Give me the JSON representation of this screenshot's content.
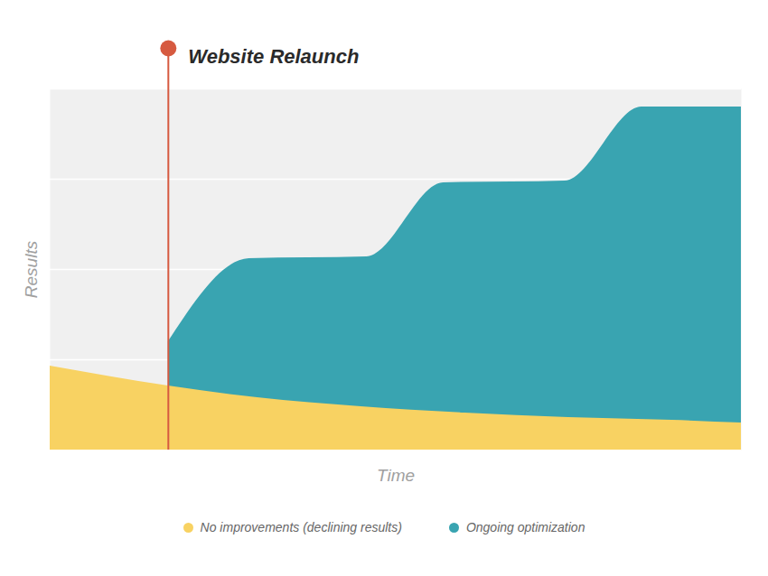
{
  "chart_data": {
    "type": "area",
    "annotation": {
      "text": "Website Relaunch",
      "x": 17.1,
      "color": "#d65a40"
    },
    "x_label": "Time",
    "y_label": "Results",
    "xlim": [
      0,
      100
    ],
    "xticks": [],
    "ylim": [
      0,
      4
    ],
    "yticks": [
      0,
      1,
      2,
      3,
      4
    ],
    "grid": true,
    "tick_labels": false,
    "stacked": false,
    "legend": "bottom",
    "series": [
      {
        "name": "No improvements (declining results)",
        "color": "#f8d262",
        "x": [
          0,
          17.1,
          30,
          45,
          60,
          75,
          90,
          100
        ],
        "values": [
          0.93,
          0.71,
          0.58,
          0.48,
          0.41,
          0.36,
          0.33,
          0.3
        ]
      },
      {
        "name": "Ongoing optimization",
        "color": "#39a4b1",
        "x": [
          17.1,
          28.8,
          45.8,
          56.9,
          74.5,
          85.6,
          100
        ],
        "values": [
          1.2,
          2.12,
          2.14,
          2.96,
          2.98,
          3.8,
          3.8
        ]
      }
    ]
  }
}
